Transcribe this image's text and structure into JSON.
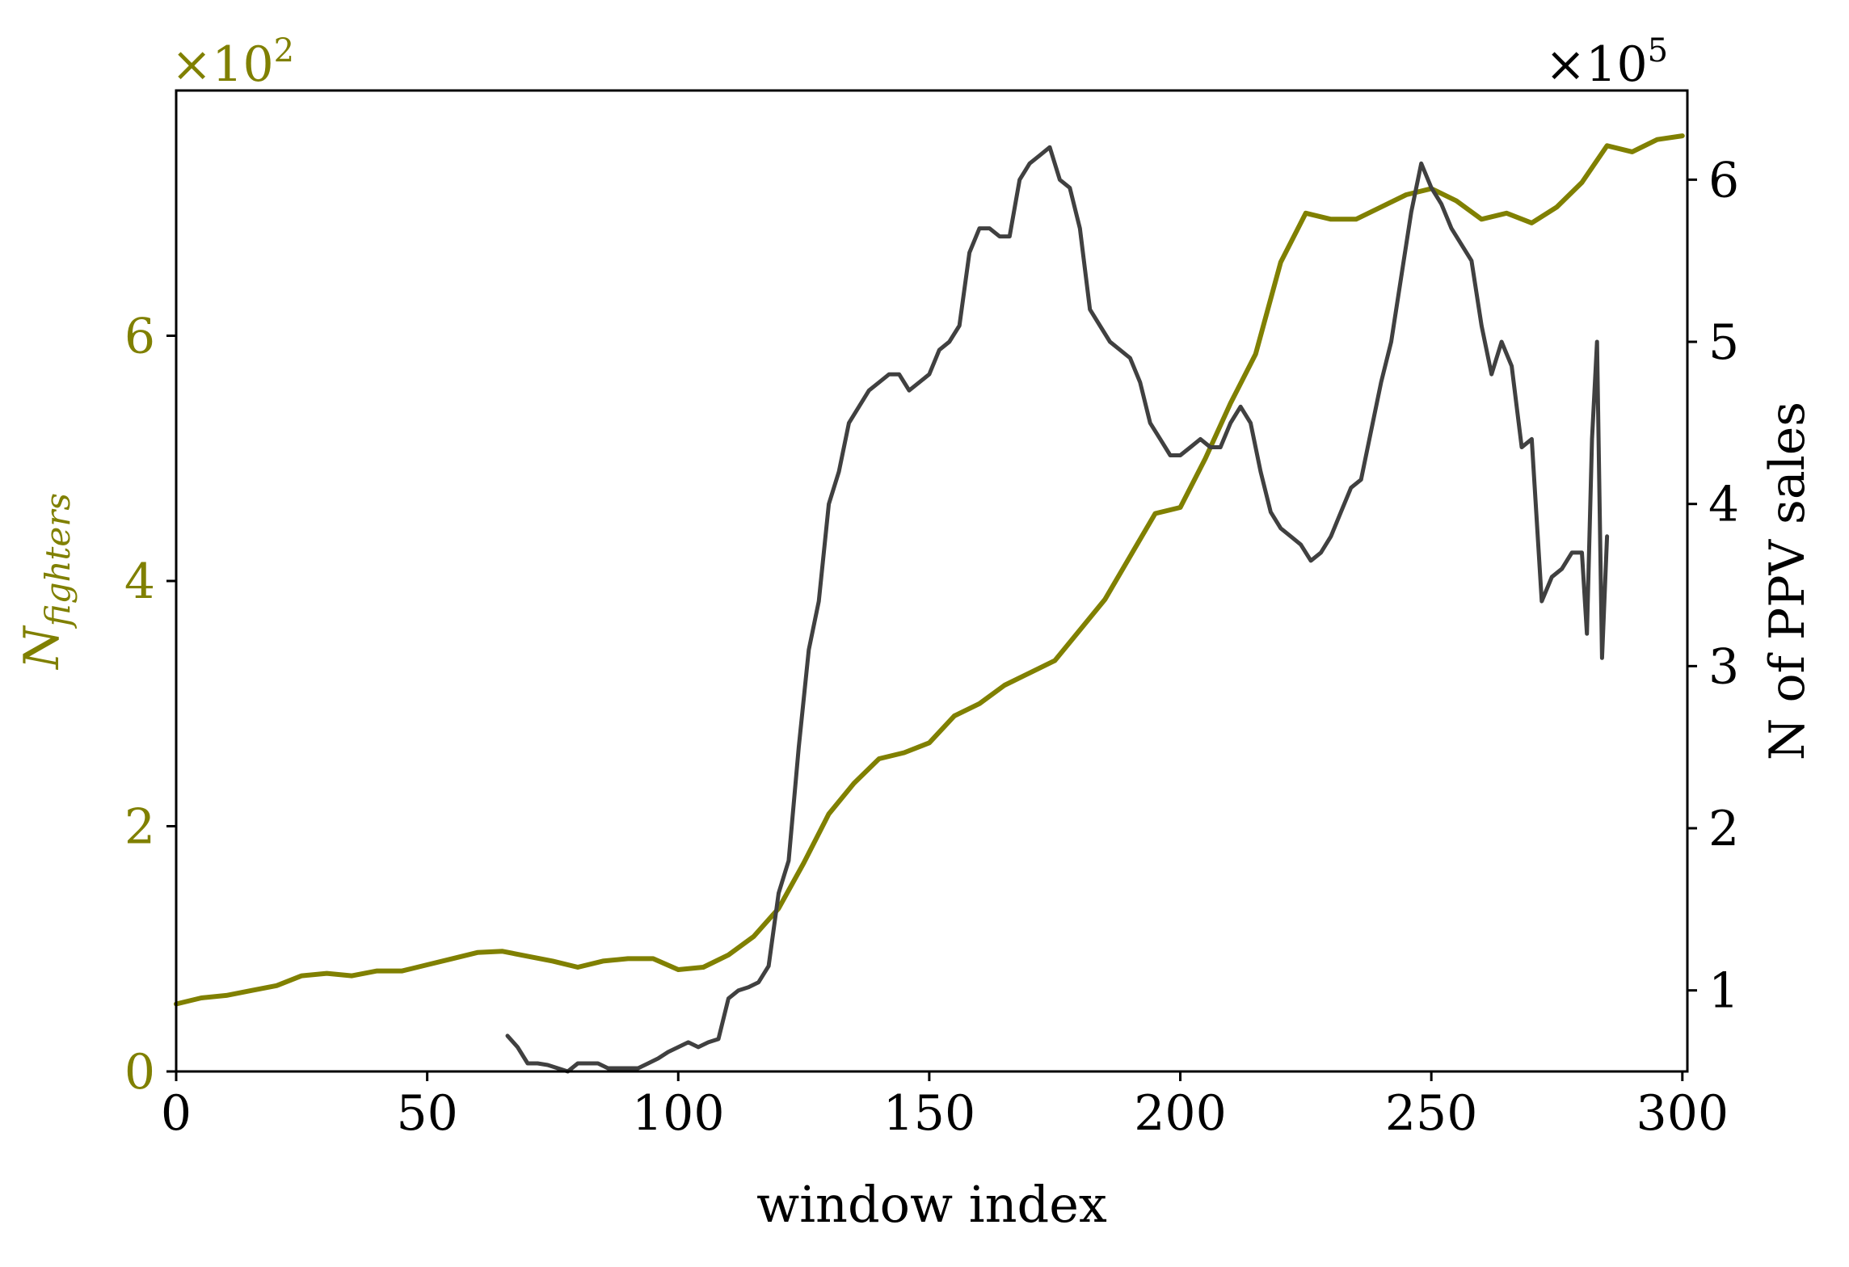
{
  "colors": {
    "fighters": "#808000",
    "ppv": "#404040",
    "axis": "#000000"
  },
  "chart_data": {
    "type": "line",
    "xlabel": "window index",
    "x_ticks": [
      0,
      50,
      100,
      150,
      200,
      250,
      300
    ],
    "xlim": [
      0,
      301
    ],
    "left_axis": {
      "label": "N",
      "label_sub": "fighters",
      "multiplier": "×10",
      "multiplier_exp": "2",
      "ticks": [
        0,
        2,
        4,
        6
      ],
      "ylim": [
        0,
        8
      ]
    },
    "right_axis": {
      "label": "N of PPV sales",
      "multiplier": "×10",
      "multiplier_exp": "5",
      "ticks": [
        1,
        2,
        3,
        4,
        5,
        6
      ],
      "ylim": [
        0.5,
        6.55
      ]
    },
    "series": [
      {
        "id": "fighters",
        "axis": "left",
        "x": [
          0,
          5,
          10,
          15,
          20,
          25,
          30,
          35,
          40,
          45,
          50,
          55,
          60,
          65,
          70,
          75,
          80,
          85,
          90,
          95,
          100,
          105,
          110,
          115,
          120,
          125,
          130,
          135,
          140,
          145,
          150,
          155,
          160,
          165,
          170,
          175,
          180,
          185,
          190,
          195,
          200,
          205,
          210,
          215,
          220,
          225,
          230,
          235,
          240,
          245,
          250,
          255,
          260,
          265,
          270,
          275,
          280,
          285,
          290,
          295,
          300
        ],
        "y": [
          0.55,
          0.6,
          0.62,
          0.66,
          0.7,
          0.78,
          0.8,
          0.78,
          0.82,
          0.82,
          0.87,
          0.92,
          0.97,
          0.98,
          0.94,
          0.9,
          0.85,
          0.9,
          0.92,
          0.92,
          0.83,
          0.85,
          0.95,
          1.1,
          1.33,
          1.7,
          2.1,
          2.35,
          2.55,
          2.6,
          2.68,
          2.9,
          3.0,
          3.15,
          3.25,
          3.35,
          3.6,
          3.85,
          4.2,
          4.55,
          4.6,
          5.0,
          5.45,
          5.85,
          6.6,
          7.0,
          6.95,
          6.95,
          7.05,
          7.15,
          7.2,
          7.1,
          6.95,
          7.0,
          6.92,
          7.05,
          7.25,
          7.55,
          7.5,
          7.6,
          7.63
        ]
      },
      {
        "id": "ppv",
        "axis": "right",
        "x": [
          66,
          68,
          70,
          72,
          74,
          76,
          78,
          80,
          82,
          84,
          86,
          88,
          90,
          92,
          94,
          96,
          98,
          100,
          102,
          104,
          106,
          108,
          110,
          112,
          114,
          116,
          118,
          120,
          122,
          124,
          126,
          128,
          130,
          132,
          134,
          136,
          138,
          140,
          142,
          144,
          146,
          148,
          150,
          152,
          154,
          156,
          158,
          160,
          162,
          164,
          166,
          168,
          170,
          172,
          174,
          176,
          178,
          180,
          182,
          184,
          186,
          188,
          190,
          192,
          194,
          196,
          198,
          200,
          202,
          204,
          206,
          208,
          210,
          212,
          214,
          216,
          218,
          220,
          222,
          224,
          226,
          228,
          230,
          232,
          234,
          236,
          238,
          240,
          242,
          244,
          246,
          248,
          250,
          252,
          254,
          256,
          258,
          260,
          262,
          264,
          266,
          268,
          270,
          272,
          274,
          276,
          278,
          280,
          281,
          282,
          283,
          284,
          285
        ],
        "y": [
          0.72,
          0.65,
          0.55,
          0.55,
          0.54,
          0.52,
          0.5,
          0.55,
          0.55,
          0.55,
          0.52,
          0.52,
          0.52,
          0.52,
          0.55,
          0.58,
          0.62,
          0.65,
          0.68,
          0.65,
          0.68,
          0.7,
          0.95,
          1.0,
          1.02,
          1.05,
          1.15,
          1.6,
          1.8,
          2.5,
          3.1,
          3.4,
          4.0,
          4.2,
          4.5,
          4.6,
          4.7,
          4.75,
          4.8,
          4.8,
          4.7,
          4.75,
          4.8,
          4.95,
          5.0,
          5.1,
          5.55,
          5.7,
          5.7,
          5.65,
          5.65,
          6.0,
          6.1,
          6.15,
          6.2,
          6.0,
          5.95,
          5.7,
          5.2,
          5.1,
          5.0,
          4.95,
          4.9,
          4.75,
          4.5,
          4.4,
          4.3,
          4.3,
          4.35,
          4.4,
          4.35,
          4.35,
          4.5,
          4.6,
          4.5,
          4.2,
          3.95,
          3.85,
          3.8,
          3.75,
          3.65,
          3.7,
          3.8,
          3.95,
          4.1,
          4.15,
          4.45,
          4.75,
          5.0,
          5.4,
          5.8,
          6.1,
          5.95,
          5.85,
          5.7,
          5.6,
          5.5,
          5.1,
          4.8,
          5.0,
          4.85,
          4.35,
          4.4,
          3.4,
          3.55,
          3.6,
          3.7,
          3.7,
          3.2,
          4.4,
          5.0,
          3.05,
          3.8
        ]
      }
    ]
  }
}
